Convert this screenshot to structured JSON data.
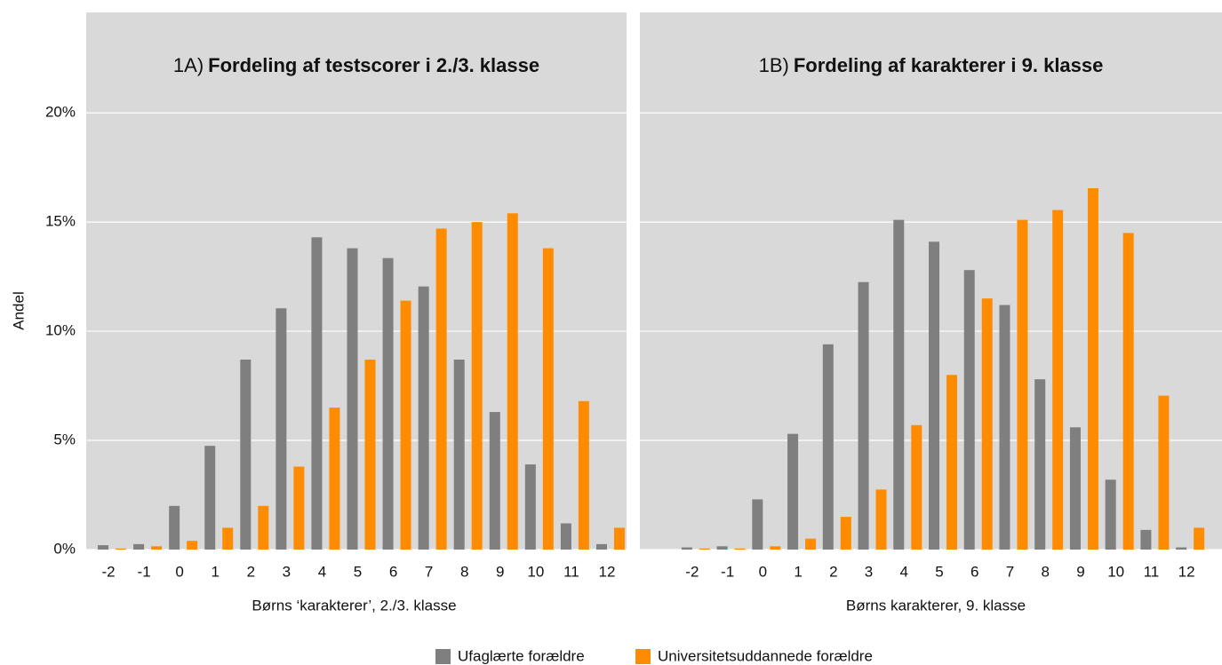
{
  "chart_data": [
    {
      "type": "bar",
      "title_prefix": "1A)",
      "title": "Fordeling af testscorer i 2./3. klasse",
      "ylabel": "Andel",
      "xlabel": "Børns ‘karakterer’, 2./3. klasse",
      "categories": [
        "-2",
        "-1",
        "0",
        "1",
        "2",
        "3",
        "4",
        "5",
        "6",
        "7",
        "8",
        "9",
        "10",
        "11",
        "12"
      ],
      "series": [
        {
          "name": "Ufaglærte forældre",
          "color": "#7f7f7f",
          "values": [
            0.2,
            0.25,
            2.0,
            4.75,
            8.7,
            11.05,
            14.3,
            13.8,
            13.35,
            12.05,
            8.7,
            6.3,
            3.9,
            1.2,
            0.25
          ]
        },
        {
          "name": "Universitetsuddannede forældre",
          "color": "#ff8c00",
          "values": [
            0.05,
            0.15,
            0.4,
            1.0,
            2.0,
            3.8,
            6.5,
            8.7,
            11.4,
            14.7,
            15.0,
            15.4,
            13.8,
            6.8,
            1.0
          ]
        }
      ],
      "ylim": [
        0,
        24.6
      ],
      "yticks": [
        {
          "value": 0,
          "label": "0%"
        },
        {
          "value": 5,
          "label": "5%"
        },
        {
          "value": 10,
          "label": "10%"
        },
        {
          "value": 15,
          "label": "15%"
        },
        {
          "value": 20,
          "label": "20%"
        }
      ],
      "grid": true
    },
    {
      "type": "bar",
      "title_prefix": "1B)",
      "title": "Fordeling af karakterer i 9. klasse",
      "xlabel": "Børns karakterer, 9. klasse",
      "categories": [
        "-2",
        "-1",
        "0",
        "1",
        "2",
        "3",
        "4",
        "5",
        "6",
        "7",
        "8",
        "9",
        "10",
        "11",
        "12"
      ],
      "series": [
        {
          "name": "Ufaglærte forældre",
          "color": "#7f7f7f",
          "values": [
            0.1,
            0.15,
            2.3,
            5.3,
            9.4,
            12.25,
            15.1,
            14.1,
            12.8,
            11.2,
            7.8,
            5.6,
            3.2,
            0.9,
            0.1
          ]
        },
        {
          "name": "Universitetsuddannede forældre",
          "color": "#ff8c00",
          "values": [
            0.05,
            0.05,
            0.15,
            0.5,
            1.5,
            2.75,
            5.7,
            8.0,
            11.5,
            15.1,
            15.55,
            16.55,
            14.5,
            7.05,
            1.0
          ]
        }
      ],
      "ylim": [
        0,
        24.6
      ],
      "yticks": [
        0,
        5,
        10,
        15,
        20
      ],
      "grid": true
    }
  ]
}
